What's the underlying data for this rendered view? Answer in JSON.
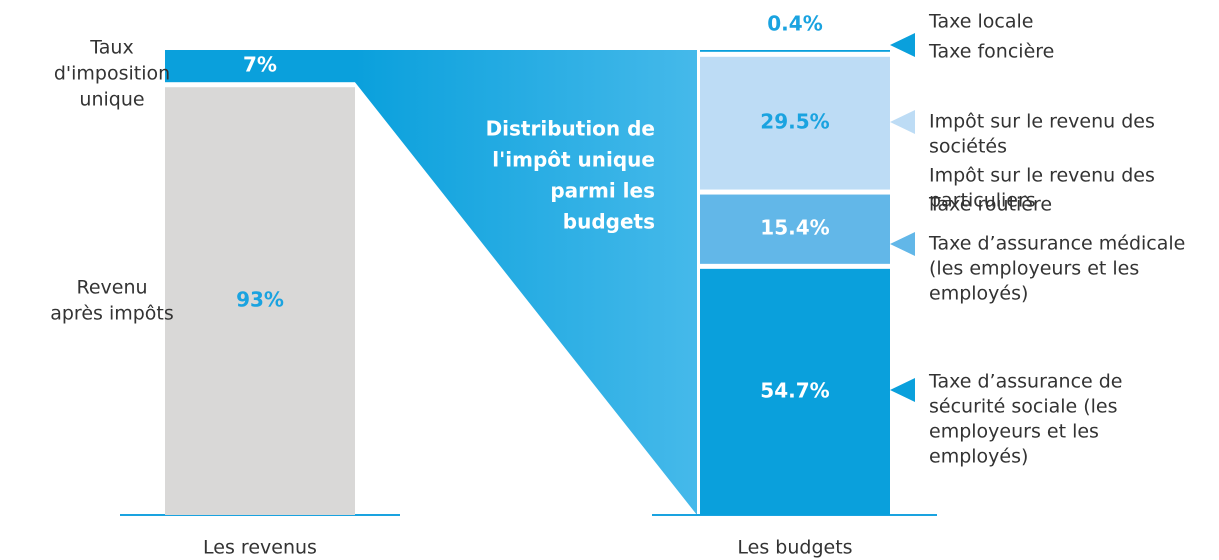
{
  "chart_data": {
    "type": "stacked-bar-funnel",
    "annotation": [
      "Distribution de",
      "l'impôt unique",
      "parmi les",
      "budgets"
    ],
    "bars": [
      {
        "category": "Les revenus",
        "segments": [
          {
            "value": 93,
            "value_label": "93%",
            "color": "#d9d8d7",
            "label_color": "#1aa3e0",
            "labels": [
              [
                "Revenu",
                "après impôts"
              ]
            ]
          },
          {
            "value": 7,
            "value_label": "7%",
            "color": "#0aa0dc",
            "label_color": "#ffffff",
            "labels": [
              [
                "Taux",
                "d'imposition",
                "unique"
              ]
            ]
          }
        ]
      },
      {
        "category": "Les budgets",
        "segments": [
          {
            "value": 54.7,
            "value_label": "54.7%",
            "color": "#0aa0dc",
            "label_color": "#ffffff",
            "labels": [
              [
                "Taxe d’assurance de",
                "sécurité sociale (les",
                "employeurs et les",
                "employés)"
              ]
            ]
          },
          {
            "value": 15.4,
            "value_label": "15.4%",
            "color": "#62b7e8",
            "label_color": "#ffffff",
            "labels": [
              [
                "Taxe routière"
              ],
              [
                "Taxe d’assurance médicale",
                "(les employeurs et les",
                "employés)"
              ]
            ]
          },
          {
            "value": 29.5,
            "value_label": "29.5%",
            "color": "#bddcf5",
            "label_color": "#1aa3e0",
            "labels": [
              [
                "Impôt sur le revenu des",
                "sociétés"
              ],
              [
                "Impôt sur le revenu des",
                "particuliers"
              ]
            ]
          },
          {
            "value": 0.4,
            "value_label": "0.4%",
            "color": "#0aa0dc",
            "label_color": "#1aa3e0",
            "labels": [
              [
                "Taxe locale"
              ],
              [
                "Taxe foncière"
              ]
            ]
          }
        ]
      }
    ]
  }
}
